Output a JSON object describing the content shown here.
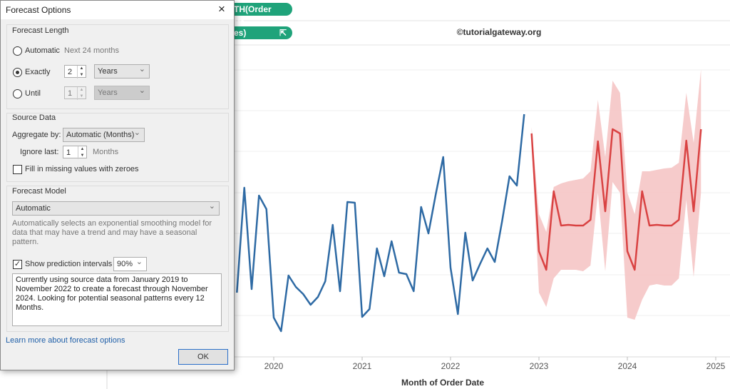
{
  "shelves": {
    "columns_pill": "TH(Order Da..",
    "rows_pill": "es)",
    "watermark": "©tutorialgateway.org"
  },
  "dialog": {
    "title": "Forecast Options",
    "close": "×",
    "forecast_length": {
      "heading": "Forecast Length",
      "automatic": {
        "label": "Automatic",
        "hint": "Next 24 months"
      },
      "exactly": {
        "label": "Exactly",
        "number": "2",
        "unit": "Years"
      },
      "until": {
        "label": "Until",
        "number": "1",
        "unit": "Years"
      }
    },
    "source_data": {
      "heading": "Source Data",
      "aggregate_label": "Aggregate by:",
      "aggregate_value": "Automatic (Months)",
      "ignore_label": "Ignore last:",
      "ignore_value": "1",
      "ignore_unit": "Months",
      "fill_missing": "Fill in missing values with zeroes"
    },
    "forecast_model": {
      "heading": "Forecast Model",
      "model": "Automatic",
      "description": "Automatically selects an exponential smoothing model for data that may have a trend and may have a seasonal pattern.",
      "show_intervals": "Show prediction intervals",
      "interval": "90%",
      "summary": "Currently using source data from January 2019 to November 2022 to create a forecast through November 2024. Looking for potential seasonal patterns every 12 Months."
    },
    "link": "Learn more about forecast options",
    "ok": "OK"
  },
  "chart_data": {
    "type": "line",
    "x_label": "Month of Order Date",
    "xticks": [
      2020,
      2021,
      2022,
      2023,
      2024,
      2025
    ],
    "x": [
      2019.583,
      2019.667,
      2019.75,
      2019.833,
      2019.917,
      2020,
      2020.083,
      2020.167,
      2020.25,
      2020.333,
      2020.417,
      2020.5,
      2020.583,
      2020.667,
      2020.75,
      2020.833,
      2020.917,
      2021,
      2021.083,
      2021.167,
      2021.25,
      2021.333,
      2021.417,
      2021.5,
      2021.583,
      2021.667,
      2021.75,
      2021.833,
      2021.917,
      2022,
      2022.083,
      2022.167,
      2022.25,
      2022.333,
      2022.417,
      2022.5,
      2022.583,
      2022.667,
      2022.75,
      2022.833,
      2022.917,
      2023,
      2023.083,
      2023.167,
      2023.25,
      2023.333,
      2023.417,
      2023.5,
      2023.583,
      2023.667,
      2023.75,
      2023.833,
      2023.917,
      2024,
      2024.083,
      2024.167,
      2024.25,
      2024.333,
      2024.417,
      2024.5,
      2024.583,
      2024.667,
      2024.75,
      2024.833
    ],
    "series": [
      {
        "color": "#2e6aa4",
        "values": [
          90,
          237,
          95,
          226,
          207,
          55,
          36,
          114,
          98,
          88,
          73,
          84,
          106,
          185,
          92,
          217,
          216,
          56,
          67,
          152,
          113,
          162,
          118,
          116,
          92,
          210,
          173,
          228,
          280,
          125,
          60,
          174,
          107,
          130,
          152,
          133,
          190,
          253,
          240,
          340,
          null,
          null,
          null,
          null,
          null,
          null,
          null,
          null,
          null,
          null,
          null,
          null,
          null,
          null,
          null,
          null,
          null,
          null,
          null,
          null,
          null,
          null,
          null,
          null
        ]
      },
      {
        "color": "#d94242",
        "values": [
          null,
          null,
          null,
          null,
          null,
          null,
          null,
          null,
          null,
          null,
          null,
          null,
          null,
          null,
          null,
          null,
          null,
          null,
          null,
          null,
          null,
          null,
          null,
          null,
          null,
          null,
          null,
          null,
          null,
          null,
          null,
          null,
          null,
          null,
          null,
          null,
          null,
          null,
          null,
          null,
          313,
          148,
          122,
          232,
          184,
          185,
          184,
          184,
          192,
          302,
          204,
          319,
          313,
          148,
          122,
          232,
          184,
          185,
          184,
          184,
          192,
          303,
          204,
          319
        ]
      }
    ],
    "band": {
      "color": "#f5c5c5",
      "upper": [
        null,
        null,
        null,
        null,
        null,
        null,
        null,
        null,
        null,
        null,
        null,
        null,
        null,
        null,
        null,
        null,
        null,
        null,
        null,
        null,
        null,
        null,
        null,
        null,
        null,
        null,
        null,
        null,
        null,
        null,
        null,
        null,
        null,
        null,
        null,
        null,
        null,
        null,
        null,
        null,
        322,
        200,
        175,
        238,
        243,
        246,
        248,
        250,
        260,
        360,
        280,
        387,
        370,
        230,
        200,
        260,
        260,
        262,
        264,
        265,
        272,
        370,
        300,
        403
      ],
      "lower": [
        null,
        null,
        null,
        null,
        null,
        null,
        null,
        null,
        null,
        null,
        null,
        null,
        null,
        null,
        null,
        null,
        null,
        null,
        null,
        null,
        null,
        null,
        null,
        null,
        null,
        null,
        null,
        null,
        null,
        null,
        null,
        null,
        null,
        null,
        null,
        null,
        null,
        null,
        null,
        null,
        300,
        90,
        70,
        110,
        122,
        122,
        122,
        120,
        128,
        230,
        120,
        245,
        230,
        55,
        52,
        80,
        100,
        102,
        100,
        100,
        110,
        220,
        112,
        230
      ]
    }
  }
}
